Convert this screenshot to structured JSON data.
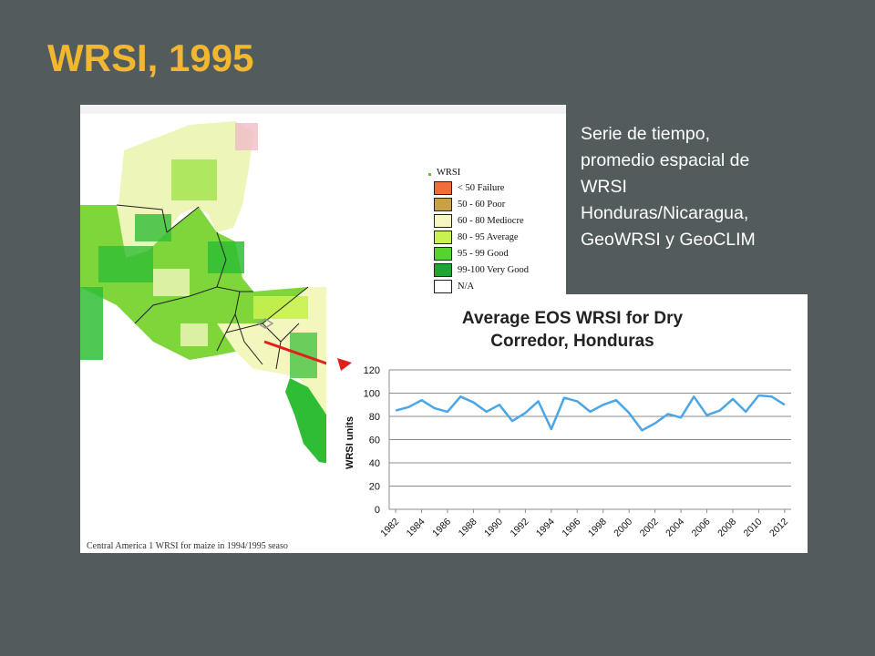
{
  "slide": {
    "title": "WRSI, 1995",
    "side_text": [
      "Serie de tiempo,",
      "promedio espacial de",
      "WRSI",
      "Honduras/Nicaragua,",
      "GeoWRSI y GeoCLIM"
    ]
  },
  "map": {
    "caption": "Central America 1 WRSI for maize in 1994/1995 seaso",
    "legend": {
      "title": "WRSI",
      "items": [
        {
          "label": "< 50 Failure",
          "color": "#f26b3a"
        },
        {
          "label": "50 - 60 Poor",
          "color": "#c9a043"
        },
        {
          "label": "60 - 80 Mediocre",
          "color": "#f5f7be"
        },
        {
          "label": "80 - 95 Average",
          "color": "#c8f250"
        },
        {
          "label": "95 - 99 Good",
          "color": "#54d42c"
        },
        {
          "label": "99-100  Very Good",
          "color": "#1ea632"
        },
        {
          "label": "N/A",
          "color": "#ffffff"
        }
      ]
    }
  },
  "colors": {
    "background": "#535c5d",
    "title": "#f2b731",
    "series_line": "#4aa6e6",
    "arrow": "#e0201b"
  },
  "chart_data": {
    "type": "line",
    "title": "Average EOS WRSI for Dry Corredor, Honduras",
    "title_lines": [
      "Average EOS WRSI for Dry",
      "Corredor, Honduras"
    ],
    "xlabel": "",
    "ylabel": "WRSI units",
    "ylim": [
      0,
      120
    ],
    "yticks": [
      0,
      20,
      40,
      60,
      80,
      100,
      120
    ],
    "grid": true,
    "legend": "none",
    "x": [
      1982,
      1983,
      1984,
      1985,
      1986,
      1987,
      1988,
      1989,
      1990,
      1991,
      1992,
      1993,
      1994,
      1995,
      1996,
      1997,
      1998,
      1999,
      2000,
      2001,
      2002,
      2003,
      2004,
      2005,
      2006,
      2007,
      2008,
      2009,
      2010,
      2011,
      2012
    ],
    "x_tick_labels": [
      "1982",
      "1984",
      "1986",
      "1988",
      "1990",
      "1992",
      "1994",
      "1996",
      "1998",
      "2000",
      "2002",
      "2004",
      "2006",
      "2008",
      "2010",
      "2012"
    ],
    "series": [
      {
        "values": [
          85,
          88,
          94,
          87,
          84,
          97,
          92,
          84,
          90,
          76,
          83,
          93,
          69,
          96,
          93,
          84,
          90,
          94,
          83,
          68,
          74,
          82,
          79,
          97,
          81,
          85,
          95,
          84,
          98,
          97,
          90
        ]
      }
    ]
  }
}
